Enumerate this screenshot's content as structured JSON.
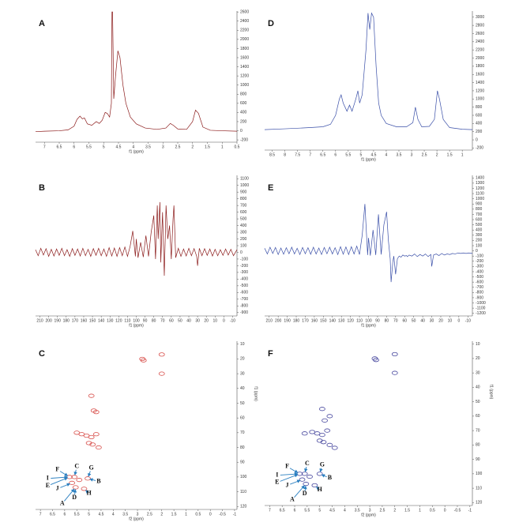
{
  "chart_data": [
    {
      "type": "line",
      "title": "A",
      "xlabel": "f1 (ppm)",
      "color": "#8b1a1a",
      "xlim": [
        7.3,
        0.5
      ],
      "xticks": [
        7.0,
        6.5,
        6.0,
        5.5,
        5.0,
        4.5,
        4.0,
        3.5,
        3.0,
        2.5,
        2.0,
        1.5,
        1.0,
        0.5
      ],
      "ylim": [
        -250,
        2620
      ],
      "yticks": [
        -200,
        0,
        200,
        400,
        600,
        800,
        1000,
        1200,
        1400,
        1600,
        1800,
        2000,
        2200,
        2400,
        2600
      ],
      "x": [
        7.3,
        7.0,
        6.5,
        6.2,
        6.0,
        5.9,
        5.8,
        5.72,
        5.65,
        5.55,
        5.4,
        5.25,
        5.15,
        5.05,
        4.95,
        4.88,
        4.8,
        4.74,
        4.72,
        4.7,
        4.66,
        4.6,
        4.52,
        4.45,
        4.35,
        4.25,
        4.1,
        3.9,
        3.6,
        3.2,
        2.9,
        2.75,
        2.65,
        2.5,
        2.2,
        2.0,
        1.9,
        1.8,
        1.65,
        1.4,
        1.0,
        0.5
      ],
      "values": [
        -20,
        -10,
        0,
        20,
        100,
        250,
        320,
        260,
        280,
        150,
        120,
        200,
        160,
        230,
        400,
        380,
        300,
        600,
        2600,
        2600,
        700,
        1200,
        1750,
        1600,
        1000,
        600,
        300,
        150,
        60,
        30,
        60,
        160,
        120,
        40,
        30,
        200,
        450,
        380,
        80,
        10,
        0,
        -10
      ]
    },
    {
      "type": "line",
      "title": "B",
      "xlabel": "f1 (ppm)",
      "color": "#8b1a1a",
      "xlim": [
        215,
        -15
      ],
      "xticks": [
        210,
        200,
        190,
        180,
        170,
        160,
        150,
        140,
        130,
        120,
        110,
        100,
        90,
        80,
        70,
        60,
        50,
        40,
        30,
        20,
        10,
        0,
        -10
      ],
      "ylim": [
        -950,
        1150
      ],
      "yticks": [
        -900,
        -800,
        -700,
        -600,
        -500,
        -400,
        -300,
        -200,
        -100,
        0,
        100,
        200,
        300,
        400,
        500,
        600,
        700,
        800,
        900,
        1000,
        1100
      ],
      "x": [
        215,
        212,
        209,
        206,
        203,
        200,
        197,
        194,
        191,
        188,
        185,
        182,
        179,
        176,
        173,
        170,
        167,
        164,
        161,
        158,
        155,
        152,
        149,
        146,
        143,
        140,
        137,
        134,
        131,
        128,
        125,
        122,
        119,
        116,
        113,
        110,
        107,
        104,
        101,
        100,
        98,
        95,
        92,
        89,
        86,
        83,
        80,
        78,
        76,
        75,
        73,
        72,
        70,
        68,
        66,
        64,
        62,
        60,
        58,
        57,
        55,
        52,
        49,
        46,
        43,
        40,
        37,
        34,
        31,
        30,
        28,
        25,
        22,
        19,
        16,
        13,
        10,
        7,
        4,
        1,
        -2,
        -5,
        -8,
        -11,
        -15
      ],
      "values": [
        40,
        -50,
        60,
        -40,
        55,
        -60,
        45,
        -55,
        50,
        -45,
        60,
        -50,
        40,
        -60,
        55,
        -45,
        50,
        -55,
        60,
        -50,
        45,
        -60,
        55,
        -45,
        60,
        -50,
        50,
        -60,
        70,
        -55,
        65,
        -60,
        70,
        -50,
        80,
        -60,
        90,
        320,
        -60,
        200,
        -80,
        150,
        -70,
        250,
        -60,
        300,
        550,
        -100,
        700,
        200,
        750,
        -150,
        600,
        -350,
        700,
        200,
        400,
        -100,
        500,
        700,
        -80,
        60,
        -60,
        50,
        -55,
        60,
        -50,
        55,
        -60,
        -200,
        60,
        -50,
        55,
        -45,
        50,
        -55,
        45,
        -50,
        40,
        -45,
        50,
        -40,
        45,
        -50,
        40
      ]
    },
    {
      "type": "scatter",
      "title": "C",
      "xlabel": "f2 (ppm)",
      "ylabel": "f1 (ppm)",
      "color": "#d9534f",
      "xlim": [
        7.2,
        -1.1
      ],
      "xticks": [
        7.0,
        6.5,
        6.0,
        5.5,
        5.0,
        4.5,
        4.0,
        3.5,
        3.0,
        2.5,
        2.0,
        1.5,
        1.0,
        0.5,
        0.0,
        -0.5,
        -1.0
      ],
      "ylim": [
        122,
        8
      ],
      "yticks": [
        10,
        20,
        30,
        40,
        50,
        60,
        70,
        80,
        90,
        100,
        110,
        120
      ],
      "x": [
        2.8,
        2.75,
        2.0,
        2.0,
        4.9,
        4.8,
        4.7,
        5.5,
        5.3,
        5.1,
        4.9,
        4.7,
        4.85,
        4.6,
        5.0,
        5.8,
        5.6,
        5.4,
        5.05,
        5.2,
        5.55,
        5.7
      ],
      "values": [
        20,
        21,
        17,
        30,
        45,
        55,
        56,
        70,
        71,
        72,
        73,
        71,
        78,
        80,
        77,
        100,
        100,
        102,
        101,
        108,
        107,
        104
      ],
      "annotations": [
        {
          "text": "F",
          "x": 6.3,
          "y": 95
        },
        {
          "text": "C",
          "x": 5.5,
          "y": 93
        },
        {
          "text": "G",
          "x": 4.9,
          "y": 94
        },
        {
          "text": "I",
          "x": 6.7,
          "y": 101
        },
        {
          "text": "B",
          "x": 4.6,
          "y": 103
        },
        {
          "text": "E",
          "x": 6.7,
          "y": 106
        },
        {
          "text": "J",
          "x": 6.3,
          "y": 108
        },
        {
          "text": "H",
          "x": 5.0,
          "y": 111
        },
        {
          "text": "D",
          "x": 5.6,
          "y": 114
        },
        {
          "text": "A",
          "x": 6.1,
          "y": 118
        }
      ]
    },
    {
      "type": "line",
      "title": "D",
      "xlabel": "f1 (ppm)",
      "color": "#3a4fa8",
      "xlim": [
        8.8,
        0.6
      ],
      "xticks": [
        8.5,
        8.0,
        7.5,
        7.0,
        6.5,
        6.0,
        5.5,
        5.0,
        4.5,
        4.0,
        3.5,
        3.0,
        2.5,
        2.0,
        1.5,
        1.0
      ],
      "ylim": [
        -250,
        3150
      ],
      "yticks": [
        -200,
        0,
        200,
        400,
        600,
        800,
        1000,
        1200,
        1400,
        1600,
        1800,
        2000,
        2200,
        2400,
        2600,
        2800,
        3000
      ],
      "x": [
        8.8,
        8.0,
        7.0,
        6.5,
        6.2,
        6.0,
        5.85,
        5.78,
        5.7,
        5.55,
        5.45,
        5.35,
        5.2,
        5.12,
        5.05,
        4.95,
        4.8,
        4.72,
        4.65,
        4.58,
        4.5,
        4.4,
        4.3,
        4.2,
        4.0,
        3.6,
        3.2,
        2.95,
        2.85,
        2.75,
        2.6,
        2.3,
        2.1,
        1.98,
        1.9,
        1.75,
        1.5,
        1.0,
        0.6
      ],
      "values": [
        250,
        270,
        300,
        320,
        380,
        600,
        1000,
        1100,
        900,
        700,
        850,
        700,
        1000,
        1200,
        900,
        1100,
        2200,
        3100,
        2700,
        3100,
        3000,
        1800,
        900,
        600,
        400,
        320,
        320,
        420,
        800,
        500,
        320,
        330,
        500,
        1200,
        1000,
        500,
        300,
        260,
        250
      ]
    },
    {
      "type": "line",
      "title": "E",
      "xlabel": "f1 (ppm)",
      "color": "#3a4fa8",
      "xlim": [
        215,
        -15
      ],
      "xticks": [
        210,
        200,
        190,
        180,
        170,
        160,
        150,
        140,
        130,
        120,
        110,
        100,
        90,
        80,
        70,
        60,
        50,
        40,
        30,
        20,
        10,
        0,
        -10
      ],
      "ylim": [
        -1250,
        1450
      ],
      "yticks": [
        -1200,
        -1100,
        -1000,
        -900,
        -800,
        -700,
        -600,
        -500,
        -400,
        -300,
        -200,
        -100,
        0,
        100,
        200,
        300,
        400,
        500,
        600,
        700,
        800,
        900,
        1000,
        1100,
        1200,
        1300,
        1400
      ],
      "x": [
        215,
        212,
        209,
        206,
        203,
        200,
        197,
        194,
        191,
        188,
        185,
        182,
        179,
        176,
        173,
        170,
        167,
        164,
        161,
        158,
        155,
        152,
        149,
        146,
        143,
        140,
        137,
        134,
        131,
        128,
        125,
        122,
        119,
        116,
        113,
        110,
        107,
        104,
        101,
        100,
        98,
        95,
        92,
        89,
        86,
        83,
        80,
        78,
        76,
        75,
        73,
        72,
        70,
        68,
        66,
        64,
        62,
        60,
        58,
        57,
        55,
        52,
        49,
        46,
        43,
        40,
        37,
        34,
        31,
        30,
        28,
        25,
        22,
        19,
        16,
        13,
        10,
        7,
        4,
        1,
        -2,
        -5,
        -8,
        -11,
        -15
      ],
      "values": [
        50,
        -60,
        70,
        -50,
        65,
        -70,
        55,
        -65,
        60,
        -55,
        70,
        -60,
        50,
        -70,
        65,
        -55,
        60,
        -65,
        70,
        -60,
        55,
        -70,
        65,
        -55,
        70,
        -60,
        60,
        -70,
        80,
        -65,
        75,
        -70,
        80,
        -60,
        90,
        -70,
        300,
        900,
        -80,
        250,
        -90,
        400,
        -80,
        700,
        -70,
        500,
        750,
        200,
        -150,
        -600,
        -200,
        -100,
        -450,
        -150,
        -100,
        -120,
        -80,
        -100,
        -90,
        -110,
        -80,
        -100,
        -60,
        -110,
        -70,
        -100,
        -60,
        -110,
        -70,
        -300,
        -80,
        -60,
        -90,
        -50,
        -80,
        -60,
        -70,
        -50,
        -60,
        -40,
        -50,
        -40,
        -50,
        -40,
        -50
      ]
    },
    {
      "type": "scatter",
      "title": "F",
      "xlabel": "f2 (ppm)",
      "ylabel": "f1 (ppm)",
      "color": "#4b4ba0",
      "xlim": [
        7.2,
        -1.1
      ],
      "xticks": [
        7.0,
        6.5,
        6.0,
        5.5,
        5.0,
        4.5,
        4.0,
        3.5,
        3.0,
        2.5,
        2.0,
        1.5,
        1.0,
        0.5,
        0.0,
        -0.5,
        -1.0
      ],
      "ylim": [
        122,
        8
      ],
      "yticks": [
        10,
        20,
        30,
        40,
        50,
        60,
        70,
        80,
        90,
        100,
        110,
        120
      ],
      "x": [
        2.8,
        2.75,
        2.0,
        2.0,
        4.9,
        4.6,
        4.8,
        5.6,
        5.3,
        5.1,
        4.9,
        4.7,
        4.85,
        4.6,
        5.0,
        5.8,
        5.6,
        5.4,
        5.0,
        5.2,
        5.55,
        5.7,
        4.4
      ],
      "values": [
        20,
        21,
        17,
        30,
        55,
        60,
        63,
        72,
        71,
        72,
        73,
        70,
        78,
        80,
        77,
        100,
        100,
        102,
        100,
        108,
        107,
        104,
        82
      ],
      "annotations": [
        {
          "text": "F",
          "x": 6.3,
          "y": 95
        },
        {
          "text": "C",
          "x": 5.5,
          "y": 93
        },
        {
          "text": "G",
          "x": 4.9,
          "y": 94
        },
        {
          "text": "I",
          "x": 6.7,
          "y": 101
        },
        {
          "text": "B",
          "x": 4.6,
          "y": 103
        },
        {
          "text": "E",
          "x": 6.7,
          "y": 106
        },
        {
          "text": "J",
          "x": 6.3,
          "y": 108
        },
        {
          "text": "H",
          "x": 5.0,
          "y": 111
        },
        {
          "text": "D",
          "x": 5.6,
          "y": 114
        },
        {
          "text": "A",
          "x": 6.1,
          "y": 118
        }
      ]
    }
  ]
}
